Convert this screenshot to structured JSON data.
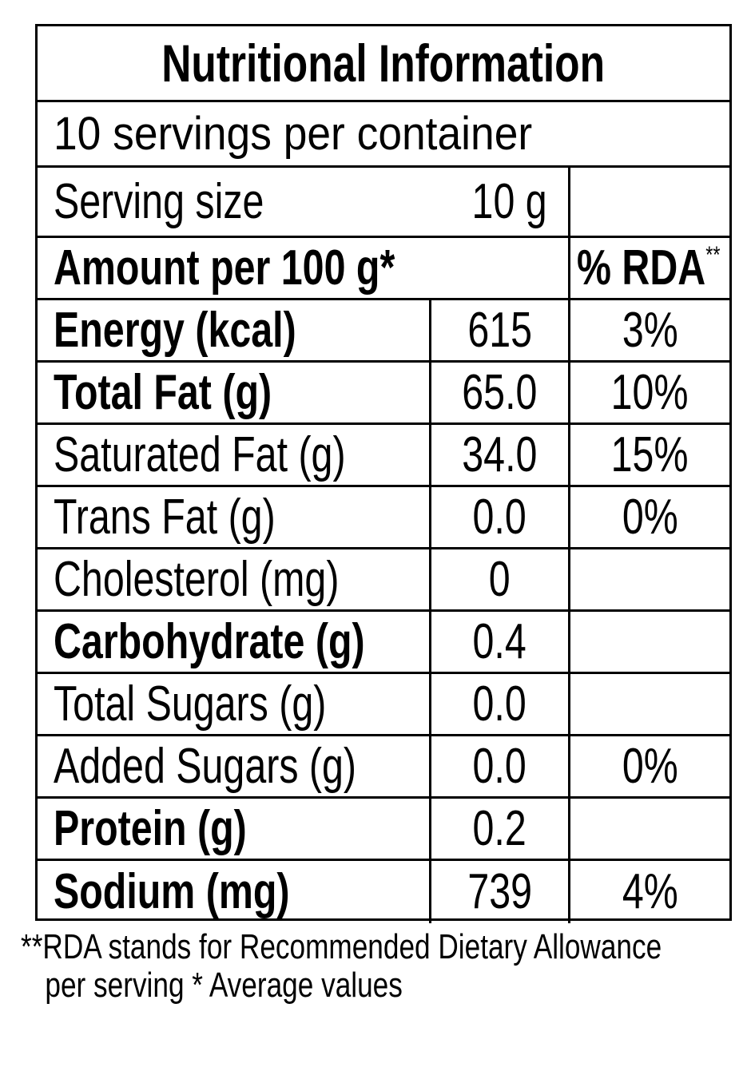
{
  "title": "Nutritional Information",
  "servings_per_container": "10 servings per container",
  "serving_size": {
    "label": "Serving size",
    "value": "10 g"
  },
  "amount_header": {
    "label": "Amount per 100 g*",
    "rda_label": "% RDA",
    "rda_marker": "**"
  },
  "nutrients": [
    {
      "name": "Energy (kcal)",
      "value": "615",
      "rda": "3%",
      "bold": true
    },
    {
      "name": "Total Fat (g)",
      "value": "65.0",
      "rda": "10%",
      "bold": true
    },
    {
      "name": "Saturated Fat (g)",
      "value": "34.0",
      "rda": "15%",
      "bold": false
    },
    {
      "name": "Trans Fat (g)",
      "value": "0.0",
      "rda": "0%",
      "bold": false
    },
    {
      "name": "Cholesterol (mg)",
      "value": "0",
      "rda": "",
      "bold": false
    },
    {
      "name": "Carbohydrate (g)",
      "value": "0.4",
      "rda": "",
      "bold": true
    },
    {
      "name": "Total Sugars (g)",
      "value": "0.0",
      "rda": "",
      "bold": false
    },
    {
      "name": "Added Sugars (g)",
      "value": "0.0",
      "rda": "0%",
      "bold": false
    },
    {
      "name": "Protein (g)",
      "value": "0.2",
      "rda": "",
      "bold": true
    },
    {
      "name": "Sodium (mg)",
      "value": "739",
      "rda": "4%",
      "bold": true
    }
  ],
  "footnote": {
    "line1": "**RDA stands for Recommended Dietary Allowance",
    "line2": "per serving * Average values"
  },
  "colors": {
    "text": "#000000",
    "background": "#ffffff",
    "border": "#000000"
  }
}
